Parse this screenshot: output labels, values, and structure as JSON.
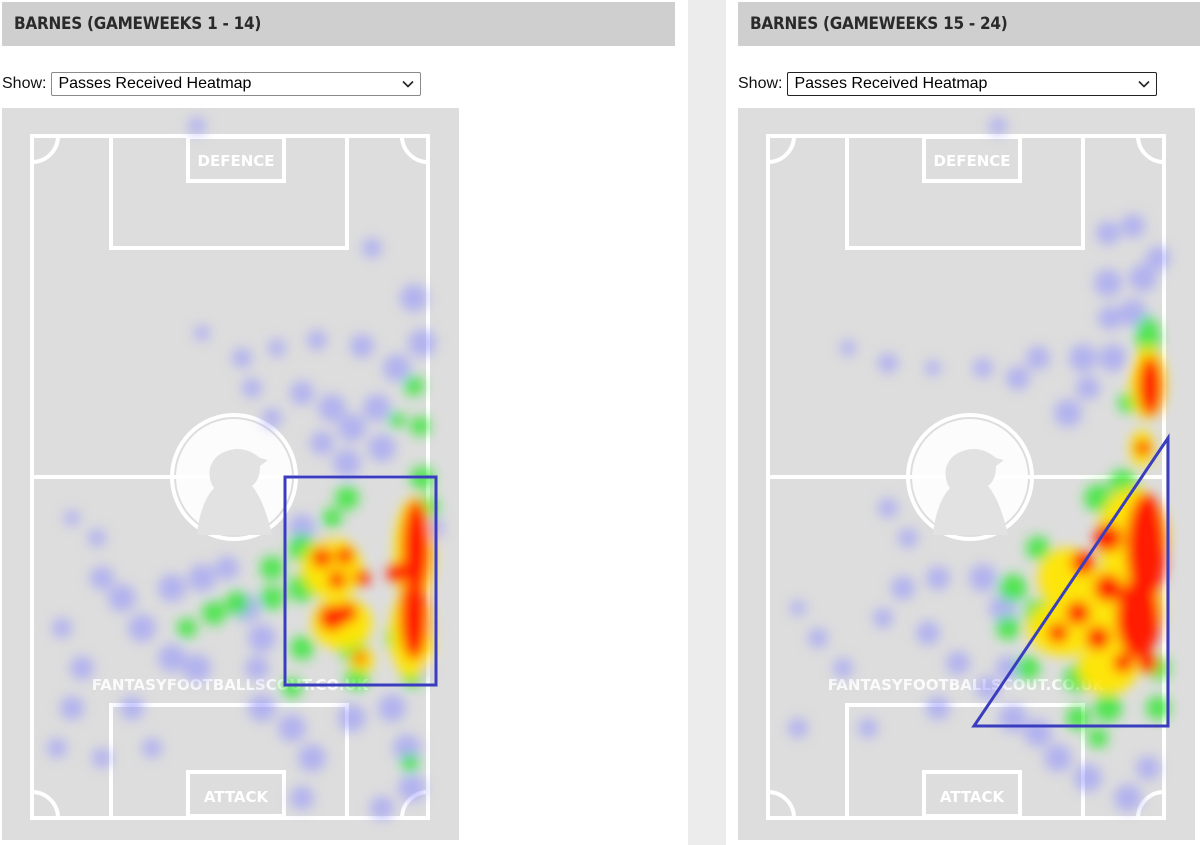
{
  "panels": [
    {
      "id": "left",
      "title": "BARNES (GAMEWEEKS 1 - 14)",
      "show_label": "Show:",
      "selected_view": "Passes Received Heatmap",
      "pitch": {
        "top_label": "DEFENCE",
        "bottom_label": "ATTACK",
        "watermark": "FANTASYFOOTBALLSCOUT.CO.UK"
      },
      "annotation_shape": "rectangle",
      "annotation_color": "#3b3dbf"
    },
    {
      "id": "right",
      "title": "BARNES (GAMEWEEKS 15 - 24)",
      "show_label": "Show:",
      "selected_view": "Passes Received Heatmap",
      "pitch": {
        "top_label": "DEFENCE",
        "bottom_label": "ATTACK",
        "watermark": "FANTASYFOOTBALLSCOUT.CO.UK"
      },
      "annotation_shape": "triangle",
      "annotation_color": "#3b3dbf"
    }
  ],
  "colors": {
    "pitch": "#dddddd",
    "lines": "#ffffff",
    "header": "#cfcfcf",
    "heat_low": "#8f8fff",
    "heat_mid": "#2ee82e",
    "heat_high": "#ff1a00"
  }
}
